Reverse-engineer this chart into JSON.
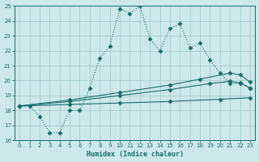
{
  "xlabel": "Humidex (Indice chaleur)",
  "xlim": [
    -0.5,
    23.5
  ],
  "ylim": [
    16,
    25
  ],
  "xticks": [
    0,
    1,
    2,
    3,
    4,
    5,
    6,
    7,
    8,
    9,
    10,
    11,
    12,
    13,
    14,
    15,
    16,
    17,
    18,
    19,
    20,
    21,
    22,
    23
  ],
  "yticks": [
    16,
    17,
    18,
    19,
    20,
    21,
    22,
    23,
    24,
    25
  ],
  "bg_color": "#cde8ea",
  "grid_color": "#a8cdd0",
  "line_color": "#1a6b6b",
  "line1_x": [
    0,
    1,
    2,
    3,
    4,
    5,
    6,
    7,
    8,
    9,
    10,
    11,
    12,
    13,
    14,
    15,
    16,
    17,
    18,
    19,
    20,
    21,
    22,
    23
  ],
  "line1_y": [
    18.3,
    18.3,
    17.6,
    16.5,
    16.5,
    18.0,
    18.0,
    19.5,
    21.5,
    22.3,
    24.8,
    24.5,
    25.0,
    22.8,
    22.0,
    23.5,
    23.8,
    22.2,
    22.5,
    21.4,
    20.5,
    19.8,
    19.8,
    19.5
  ],
  "line2_x": [
    0,
    5,
    10,
    15,
    19,
    21,
    22,
    23
  ],
  "line2_y": [
    18.3,
    18.6,
    19.0,
    19.4,
    19.8,
    19.95,
    19.85,
    19.5
  ],
  "line3_x": [
    0,
    5,
    10,
    15,
    18,
    21,
    22,
    23
  ],
  "line3_y": [
    18.3,
    18.7,
    19.2,
    19.7,
    20.1,
    20.5,
    20.4,
    19.9
  ],
  "line4_x": [
    0,
    5,
    10,
    15,
    20,
    23
  ],
  "line4_y": [
    18.3,
    18.4,
    18.5,
    18.6,
    18.75,
    18.85
  ]
}
